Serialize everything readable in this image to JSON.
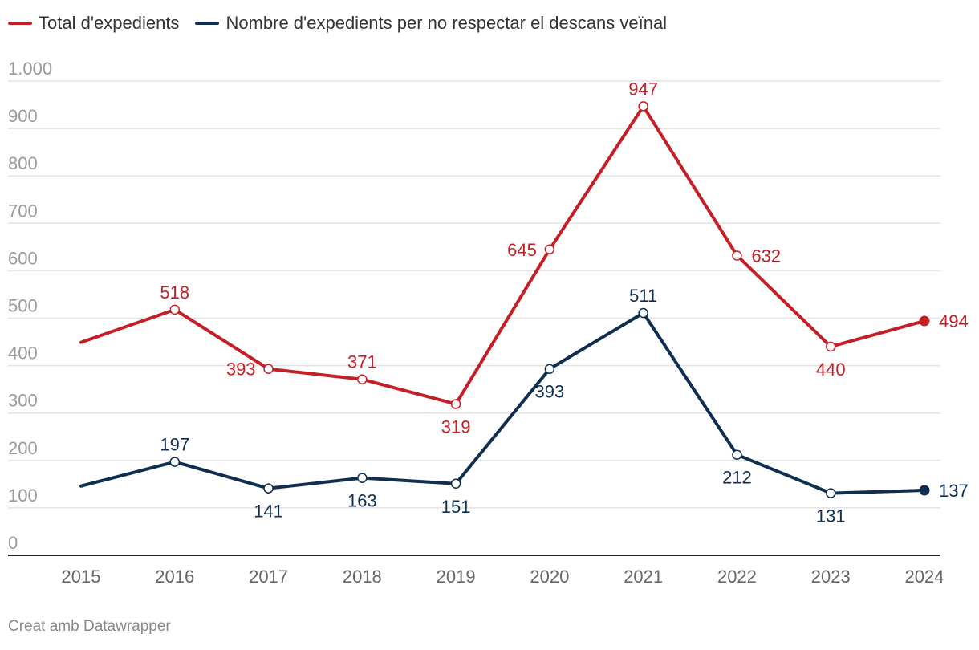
{
  "legend": {
    "total_label": "Total d'expedients",
    "descans_label": "Nombre d'expedients per no respectar el descans veïnal"
  },
  "footer": {
    "credit": "Creat amb Datawrapper"
  },
  "colors": {
    "total": "#c41f27",
    "descans": "#0f2e50",
    "grid": "#e3e3e3",
    "axis": "#222222",
    "tick": "#9a9a9a",
    "year": "#666666"
  },
  "chart_data": {
    "type": "line",
    "title": "",
    "xlabel": "",
    "ylabel": "",
    "x": [
      "2015",
      "2016",
      "2017",
      "2018",
      "2019",
      "2020",
      "2021",
      "2022",
      "2023",
      "2024"
    ],
    "ylim": [
      0,
      1000
    ],
    "yticks": [
      0,
      100,
      200,
      300,
      400,
      500,
      600,
      700,
      800,
      900,
      1000
    ],
    "ytick_labels": [
      "0",
      "100",
      "200",
      "300",
      "400",
      "500",
      "600",
      "700",
      "800",
      "900",
      "1.000"
    ],
    "grid": true,
    "series": [
      {
        "name": "Total d'expedients",
        "color_key": "total",
        "values": [
          449,
          518,
          393,
          371,
          319,
          645,
          947,
          632,
          440,
          494
        ],
        "labels": [
          "",
          "518",
          "393",
          "371",
          "319",
          "645",
          "947",
          "632",
          "440",
          "494"
        ],
        "label_pos": [
          "",
          "above",
          "left",
          "above",
          "below",
          "left",
          "above",
          "right",
          "below",
          "right"
        ]
      },
      {
        "name": "Nombre d'expedients per no respectar el descans veïnal",
        "color_key": "descans",
        "values": [
          146,
          197,
          141,
          163,
          151,
          393,
          511,
          212,
          131,
          137
        ],
        "labels": [
          "",
          "197",
          "141",
          "163",
          "151",
          "393",
          "511",
          "212",
          "131",
          "137"
        ],
        "label_pos": [
          "",
          "above",
          "below",
          "below",
          "below",
          "below",
          "above",
          "below",
          "below",
          "right"
        ]
      }
    ]
  }
}
